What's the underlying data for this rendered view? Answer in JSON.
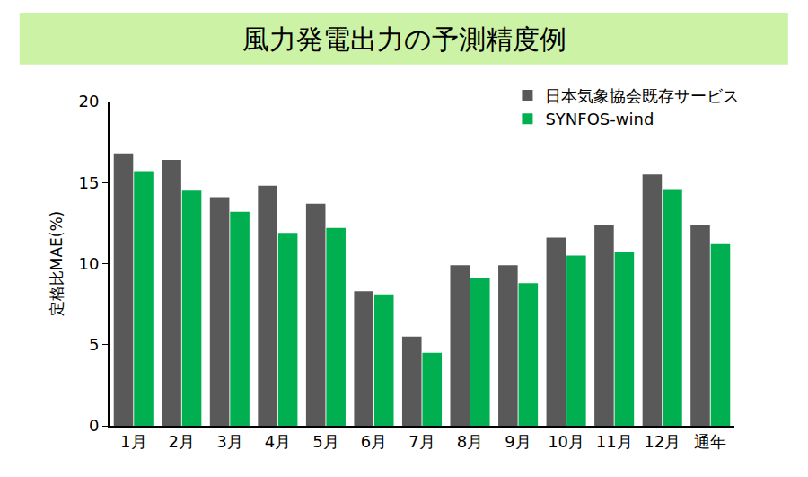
{
  "chart_data": {
    "type": "bar",
    "title": "風力発電出力の予測精度例",
    "y_label": "定格比MAE(%)",
    "categories": [
      "1月",
      "2月",
      "3月",
      "4月",
      "5月",
      "6月",
      "7月",
      "8月",
      "9月",
      "10月",
      "11月",
      "12月",
      "通年"
    ],
    "series": [
      {
        "name": "日本気象協会既存サービス",
        "color": "#595959",
        "values": [
          16.8,
          16.4,
          14.1,
          14.8,
          13.7,
          8.3,
          5.5,
          9.9,
          9.9,
          11.6,
          12.4,
          15.5,
          12.4
        ]
      },
      {
        "name": "SYNFOS-wind",
        "color": "#00b050",
        "values": [
          15.7,
          14.5,
          13.2,
          11.9,
          12.2,
          8.1,
          4.5,
          9.1,
          8.8,
          10.5,
          10.7,
          14.6,
          11.2
        ]
      }
    ],
    "ylim": [
      0,
      20
    ],
    "yticks": [
      0,
      5,
      10,
      15,
      20
    ],
    "grid": false,
    "legend": "top right"
  }
}
